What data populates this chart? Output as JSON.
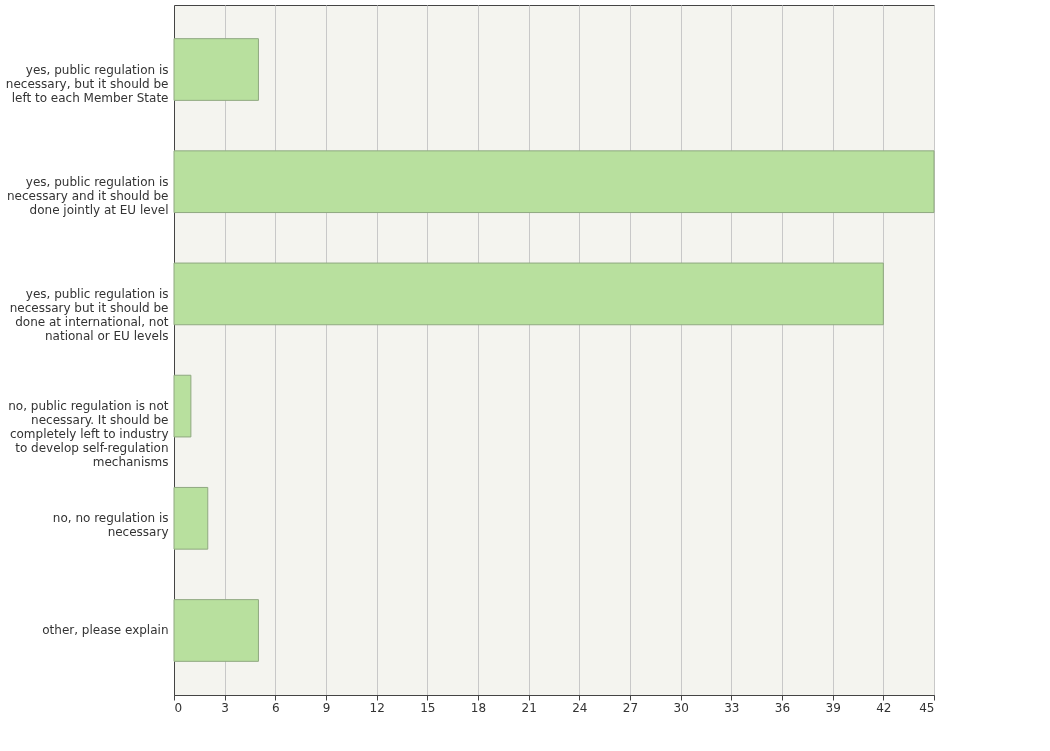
{
  "chart_data": {
    "type": "bar",
    "orientation": "horizontal",
    "categories": [
      "yes, public regulation is necessary, but it should be left to each Member State",
      "yes, public regulation is necessary and it should be done jointly at EU level",
      "yes, public regulation is necessary but it should be done at international, not national or EU levels",
      "no, public regulation is not necessary. It should be completely left to industry to develop self-regulation mechanisms",
      "no, no regulation is necessary",
      "other, please explain"
    ],
    "values": [
      5,
      45,
      42,
      1,
      2,
      5
    ],
    "color": "#b8e09e",
    "xlim": [
      0,
      45
    ],
    "xticks": [
      0,
      3,
      6,
      9,
      12,
      15,
      18,
      21,
      24,
      27,
      30,
      33,
      36,
      39,
      42,
      45
    ],
    "grid": "x"
  }
}
